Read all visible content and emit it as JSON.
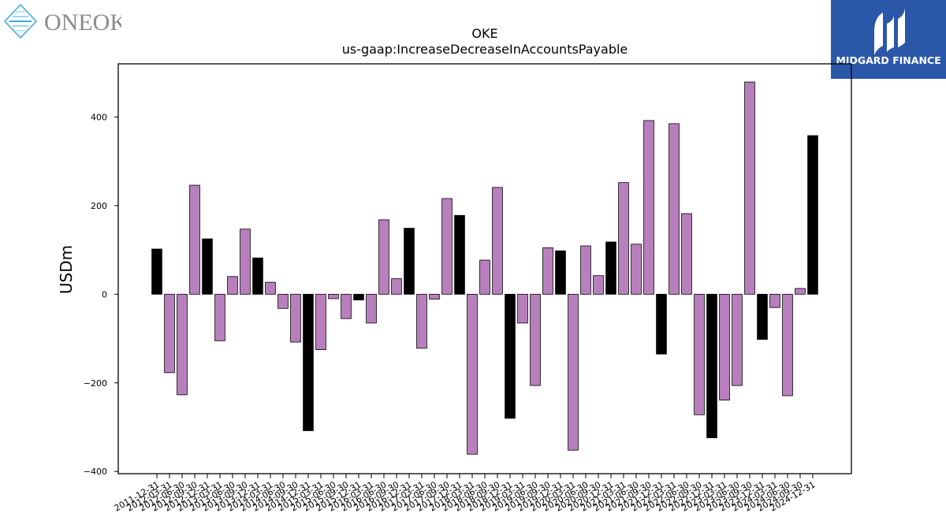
{
  "logos": {
    "left_text": "ONEOK",
    "right_text": "MIDGARD FINANCE"
  },
  "colors": {
    "bar_default": "#b87fbd",
    "bar_highlight": "#000000",
    "logo_right_bg": "#2b57a9",
    "logo_left_text": "#8a8a8a",
    "logo_left_diamond": "#3aa9d9"
  },
  "chart_data": {
    "type": "bar",
    "title": "OKE",
    "subtitle": "us-gaap:IncreaseDecreaseInAccountsPayable",
    "xlabel": "",
    "ylabel": "USDm",
    "ylim": [
      -405,
      520
    ],
    "yticks": [
      -400,
      -200,
      0,
      200,
      400
    ],
    "grid": false,
    "categories": [
      "2011-12-31",
      "2012-03-31",
      "2012-06-30",
      "2012-09-30",
      "2012-12-31",
      "2013-03-31",
      "2013-06-30",
      "2013-09-30",
      "2013-12-31",
      "2014-03-31",
      "2014-06-30",
      "2014-09-30",
      "2014-12-31",
      "2015-03-31",
      "2015-06-30",
      "2015-09-30",
      "2015-12-31",
      "2016-03-31",
      "2016-06-30",
      "2016-09-30",
      "2016-12-31",
      "2017-03-31",
      "2017-06-30",
      "2017-09-30",
      "2017-12-31",
      "2018-03-31",
      "2018-06-30",
      "2018-09-30",
      "2018-12-31",
      "2019-03-31",
      "2019-06-30",
      "2019-09-30",
      "2019-12-31",
      "2020-03-31",
      "2020-06-30",
      "2020-09-30",
      "2020-12-31",
      "2021-03-31",
      "2021-06-30",
      "2021-09-30",
      "2021-12-31",
      "2022-03-31",
      "2022-06-30",
      "2022-09-30",
      "2022-12-31",
      "2023-03-31",
      "2023-06-30",
      "2023-09-30",
      "2023-12-31",
      "2024-03-31",
      "2024-06-30",
      "2024-09-30",
      "2024-12-31"
    ],
    "values": [
      102,
      -177,
      -227,
      246,
      125,
      -105,
      40,
      147,
      82,
      27,
      -32,
      -108,
      -308,
      -125,
      -10,
      -55,
      -13,
      -65,
      168,
      35,
      149,
      -122,
      -11,
      216,
      178,
      -361,
      77,
      241,
      -280,
      -65,
      -206,
      105,
      98,
      -352,
      109,
      42,
      118,
      252,
      113,
      392,
      -135,
      385,
      182,
      -272,
      -324,
      -239,
      -206,
      479,
      -102,
      -30,
      -229,
      13,
      358
    ],
    "highlight": [
      true,
      false,
      false,
      false,
      true,
      false,
      false,
      false,
      true,
      false,
      false,
      false,
      true,
      false,
      false,
      false,
      true,
      false,
      false,
      false,
      true,
      false,
      false,
      false,
      true,
      false,
      false,
      false,
      true,
      false,
      false,
      false,
      true,
      false,
      false,
      false,
      true,
      false,
      false,
      false,
      true,
      false,
      false,
      false,
      true,
      false,
      false,
      false,
      true,
      false,
      false,
      false,
      true
    ]
  }
}
